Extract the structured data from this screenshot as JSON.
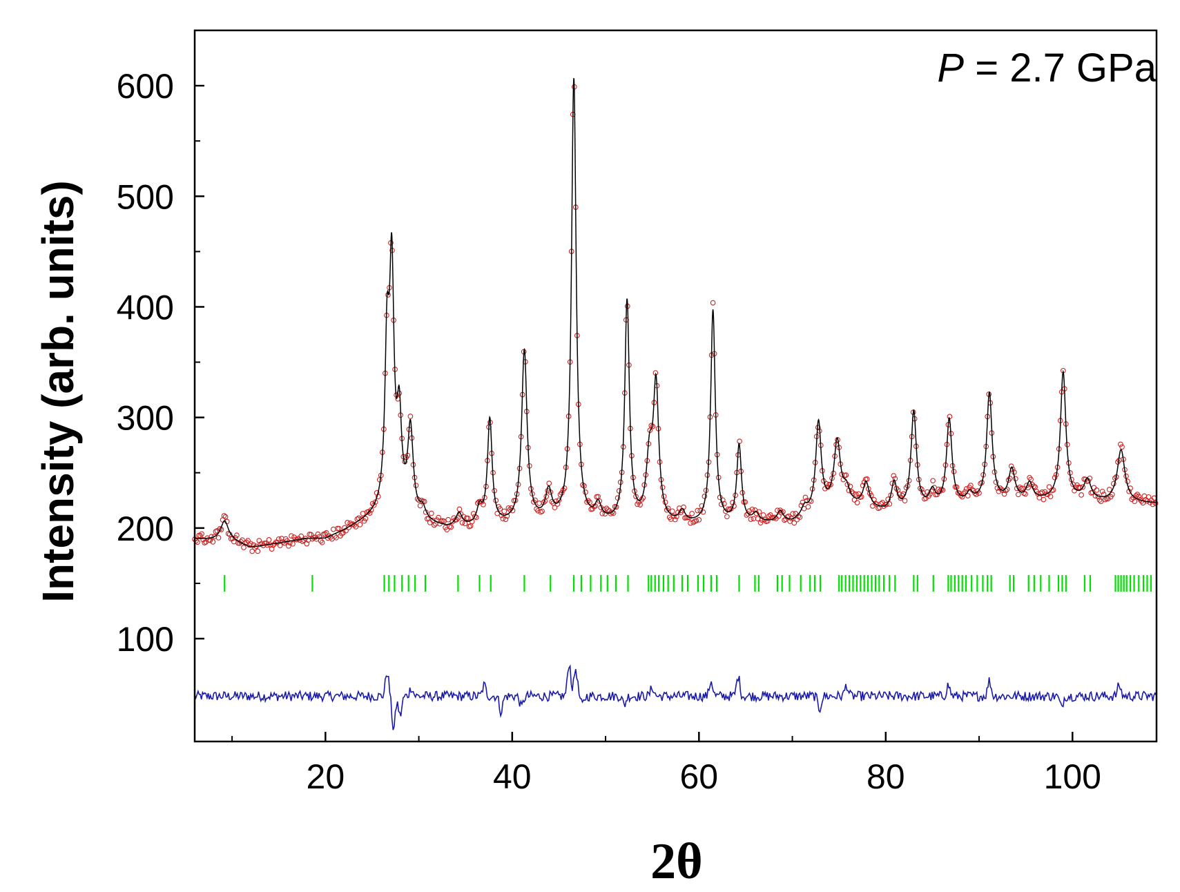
{
  "chart_data": {
    "type": "scatter",
    "title": "",
    "xlabel": "2θ",
    "ylabel": "Intensity (arb. units)",
    "annotation": {
      "italic": "P",
      "rest": " = 2.7 GPa"
    },
    "xlim": [
      6,
      109
    ],
    "ylim": [
      7,
      650
    ],
    "xticks": [
      20,
      40,
      60,
      80,
      100
    ],
    "xticks_minor": [
      10,
      30,
      50,
      70,
      90
    ],
    "yticks": [
      100,
      200,
      300,
      400,
      500,
      600
    ],
    "yticks_minor": [
      150,
      250,
      350,
      450,
      550
    ],
    "grid": false,
    "colors": {
      "observed": "#cc2222",
      "calculated": "#000000",
      "difference": "#1a1aaa",
      "bragg": "#00e000",
      "axis": "#000000"
    },
    "baseline": [
      [
        6,
        190
      ],
      [
        10,
        188
      ],
      [
        12,
        182
      ],
      [
        15,
        186
      ],
      [
        18,
        190
      ],
      [
        20,
        190
      ],
      [
        22,
        197
      ],
      [
        24,
        205
      ],
      [
        25.8,
        212
      ],
      [
        27,
        216
      ],
      [
        30,
        205
      ],
      [
        33,
        199
      ],
      [
        36,
        200
      ],
      [
        40,
        203
      ],
      [
        45,
        205
      ],
      [
        50,
        203
      ],
      [
        55,
        202
      ],
      [
        60,
        202
      ],
      [
        65,
        203
      ],
      [
        70,
        204
      ],
      [
        75,
        222
      ],
      [
        80,
        214
      ],
      [
        85,
        217
      ],
      [
        90,
        222
      ],
      [
        95,
        224
      ],
      [
        100,
        225
      ],
      [
        105,
        222
      ],
      [
        109,
        222
      ]
    ],
    "peaks": [
      {
        "pos": 9.2,
        "height": 18,
        "width": 0.5
      },
      {
        "pos": 26.6,
        "height": 140,
        "width": 0.28
      },
      {
        "pos": 27.1,
        "height": 205,
        "width": 0.28
      },
      {
        "pos": 27.9,
        "height": 80,
        "width": 0.3
      },
      {
        "pos": 29.1,
        "height": 78,
        "width": 0.35
      },
      {
        "pos": 30.4,
        "height": 10,
        "width": 0.4
      },
      {
        "pos": 34.3,
        "height": 12,
        "width": 0.4
      },
      {
        "pos": 36.5,
        "height": 15,
        "width": 0.35
      },
      {
        "pos": 37.6,
        "height": 95,
        "width": 0.3
      },
      {
        "pos": 41.3,
        "height": 155,
        "width": 0.35
      },
      {
        "pos": 43.9,
        "height": 25,
        "width": 0.4
      },
      {
        "pos": 46.6,
        "height": 400,
        "width": 0.3
      },
      {
        "pos": 49.2,
        "height": 14,
        "width": 0.4
      },
      {
        "pos": 52.3,
        "height": 200,
        "width": 0.3
      },
      {
        "pos": 54.7,
        "height": 55,
        "width": 0.4
      },
      {
        "pos": 55.4,
        "height": 120,
        "width": 0.35
      },
      {
        "pos": 58.2,
        "height": 10,
        "width": 0.4
      },
      {
        "pos": 61.5,
        "height": 193,
        "width": 0.3
      },
      {
        "pos": 64.3,
        "height": 70,
        "width": 0.3
      },
      {
        "pos": 66.1,
        "height": 8,
        "width": 0.4
      },
      {
        "pos": 68.7,
        "height": 10,
        "width": 0.4
      },
      {
        "pos": 71.3,
        "height": 8,
        "width": 0.4
      },
      {
        "pos": 72.8,
        "height": 80,
        "width": 0.35
      },
      {
        "pos": 74.8,
        "height": 55,
        "width": 0.4
      },
      {
        "pos": 75.8,
        "height": 12,
        "width": 0.4
      },
      {
        "pos": 77.9,
        "height": 22,
        "width": 0.4
      },
      {
        "pos": 80.9,
        "height": 25,
        "width": 0.35
      },
      {
        "pos": 83.0,
        "height": 88,
        "width": 0.35
      },
      {
        "pos": 85.0,
        "height": 14,
        "width": 0.4
      },
      {
        "pos": 86.8,
        "height": 78,
        "width": 0.35
      },
      {
        "pos": 89.0,
        "height": 8,
        "width": 0.4
      },
      {
        "pos": 91.1,
        "height": 98,
        "width": 0.35
      },
      {
        "pos": 93.5,
        "height": 28,
        "width": 0.4
      },
      {
        "pos": 95.4,
        "height": 15,
        "width": 0.4
      },
      {
        "pos": 99.0,
        "height": 115,
        "width": 0.35
      },
      {
        "pos": 101.6,
        "height": 18,
        "width": 0.45
      },
      {
        "pos": 105.2,
        "height": 48,
        "width": 0.5
      }
    ],
    "bragg_positions": [
      9.2,
      18.6,
      26.3,
      26.8,
      27.4,
      28.2,
      28.9,
      29.6,
      30.7,
      34.2,
      36.5,
      37.7,
      41.3,
      44.1,
      46.6,
      47.4,
      48.4,
      49.5,
      50.2,
      51.1,
      52.4,
      54.6,
      54.9,
      55.3,
      55.7,
      56.2,
      56.7,
      57.3,
      58.2,
      58.8,
      59.9,
      60.5,
      61.3,
      61.9,
      64.3,
      66.0,
      66.4,
      68.4,
      68.9,
      69.7,
      70.9,
      71.9,
      72.4,
      73.0,
      75.0,
      75.3,
      75.7,
      76.1,
      76.5,
      76.9,
      77.3,
      77.7,
      78.1,
      78.5,
      78.9,
      79.3,
      79.8,
      80.4,
      81.0,
      83.0,
      83.4,
      85.1,
      86.7,
      87.0,
      87.4,
      87.8,
      88.2,
      88.6,
      89.2,
      89.8,
      90.4,
      90.9,
      91.3,
      93.3,
      93.7,
      95.3,
      95.9,
      96.6,
      97.5,
      98.5,
      98.9,
      99.3,
      101.3,
      101.9,
      104.6,
      104.9,
      105.2,
      105.5,
      105.8,
      106.2,
      106.6,
      107.1,
      107.6,
      108.0,
      108.4
    ],
    "bragg_level": 150,
    "difference_offset": 48,
    "difference_features": [
      {
        "pos": 26.6,
        "amp": 22
      },
      {
        "pos": 27.3,
        "amp": -30
      },
      {
        "pos": 28.0,
        "amp": -18
      },
      {
        "pos": 29.2,
        "amp": 8
      },
      {
        "pos": 37.0,
        "amp": 10
      },
      {
        "pos": 38.8,
        "amp": -14
      },
      {
        "pos": 41.0,
        "amp": -10
      },
      {
        "pos": 46.1,
        "amp": 30
      },
      {
        "pos": 46.8,
        "amp": 25
      },
      {
        "pos": 47.5,
        "amp": -8
      },
      {
        "pos": 52.0,
        "amp": -8
      },
      {
        "pos": 55.0,
        "amp": 8
      },
      {
        "pos": 61.3,
        "amp": 14
      },
      {
        "pos": 64.2,
        "amp": 18
      },
      {
        "pos": 72.9,
        "amp": -12
      },
      {
        "pos": 75.8,
        "amp": 10
      },
      {
        "pos": 86.7,
        "amp": 10
      },
      {
        "pos": 91.1,
        "amp": 14
      },
      {
        "pos": 98.8,
        "amp": -10
      },
      {
        "pos": 105.0,
        "amp": 10
      }
    ]
  }
}
